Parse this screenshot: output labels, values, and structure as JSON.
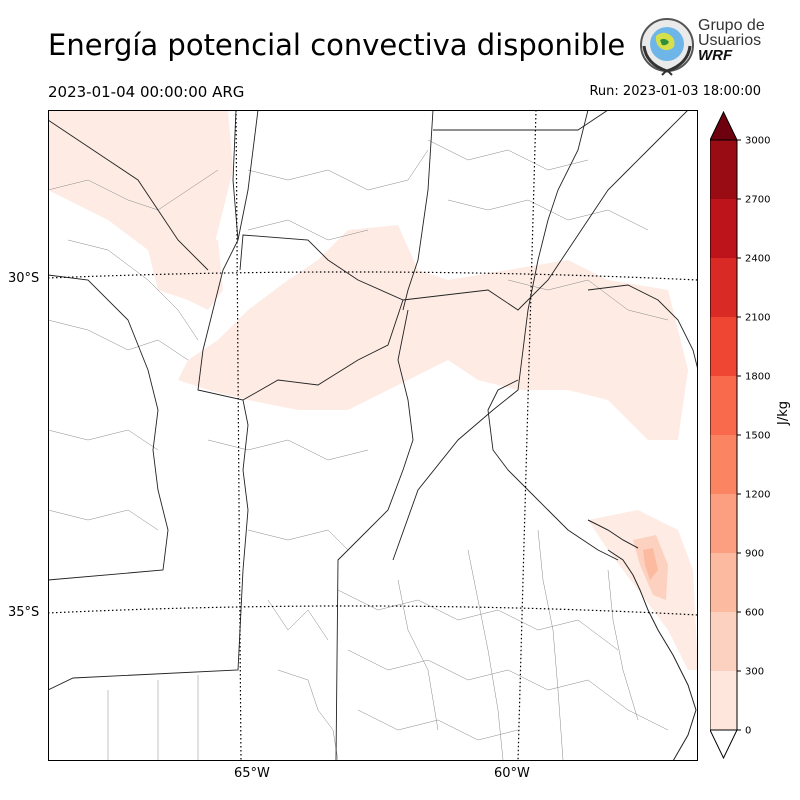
{
  "header": {
    "title": "Energía potencial convectiva disponible",
    "valid_time": "2023-01-04 00:00:00 ARG",
    "run_time": "Run: 2023-01-03 18:00:00"
  },
  "logo": {
    "line1": "Grupo de",
    "line2": "Usuarios",
    "line3": "WRF"
  },
  "map": {
    "lat_labels": [
      "30°S",
      "35°S"
    ],
    "lon_labels": [
      "65°W",
      "60°W"
    ],
    "field": "CAPE",
    "max_region": "Río de la Plata offshore, approx 300–600 J/kg",
    "widespread_values": "0–300 J/kg over central Argentina"
  },
  "colorbar": {
    "unit_label": "J/kg",
    "ticks": [
      "0",
      "300",
      "600",
      "900",
      "1200",
      "1500",
      "1800",
      "2100",
      "2400",
      "2700",
      "3000"
    ],
    "colors": [
      "#fee6dc",
      "#fcd1c0",
      "#fcbaa0",
      "#fc9f81",
      "#fb8463",
      "#f9694c",
      "#ef4533",
      "#da2a25",
      "#bc141a",
      "#9a0c14",
      "#6d010e"
    ],
    "extend": "both"
  }
}
